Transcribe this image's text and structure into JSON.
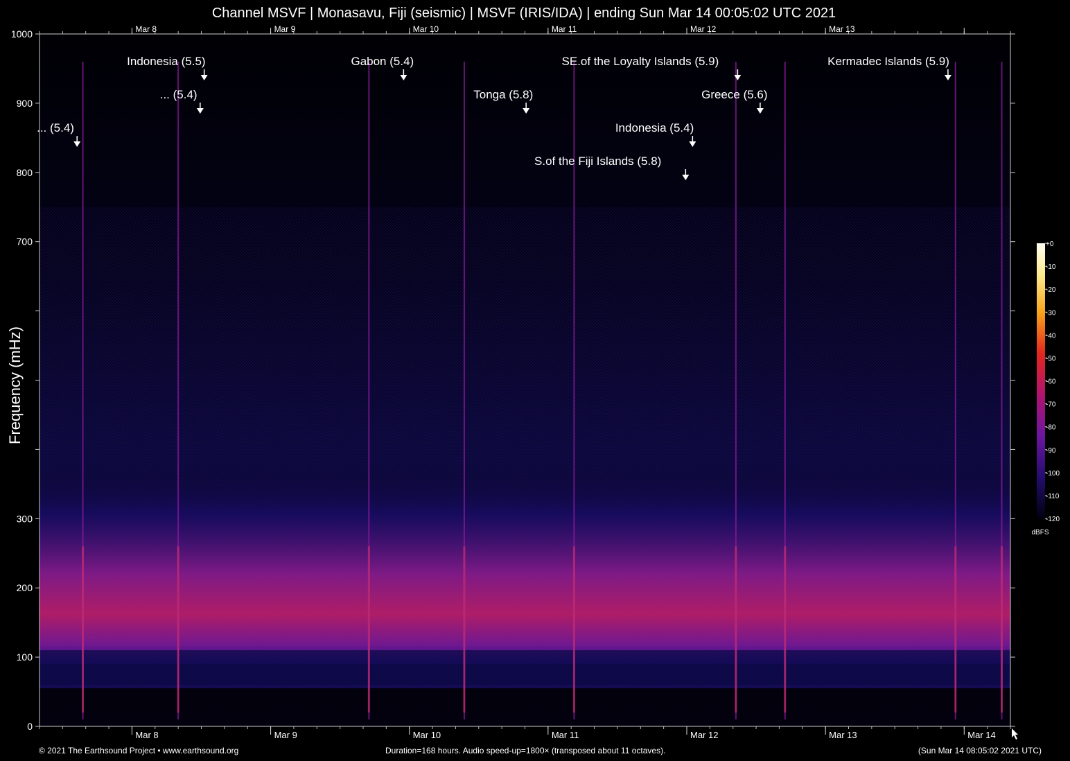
{
  "title": "Channel MSVF | Monasavu, Fiji (seismic) | MSVF (IRIS/IDA) | ending Sun Mar 14 00:05:02 UTC 2021",
  "footer": {
    "left": "© 2021 The Earthsound Project • www.earthsound.org",
    "center": "Duration=168 hours. Audio speed-up=1800× (transposed about 11 octaves).",
    "right": "(Sun Mar 14 08:05:02 2021 UTC)"
  },
  "chart_data": {
    "type": "heatmap",
    "title": "Channel MSVF | Monasavu, Fiji (seismic) | MSVF (IRIS/IDA) | ending Sun Mar 14 00:05:02 UTC 2021",
    "xlabel": "",
    "ylabel": "Frequency (mHz)",
    "x_unit": "hours before end (duration 168 h)",
    "xlim": [
      0,
      168
    ],
    "ylim": [
      0,
      1000
    ],
    "y_ticks": [
      0,
      100,
      200,
      300,
      400,
      500,
      600,
      700,
      800,
      900,
      1000
    ],
    "y_tick_labels": [
      "0",
      "100",
      "200",
      "300",
      "",
      "",
      "",
      "700",
      "800",
      "900",
      "1000"
    ],
    "x_ticks": [
      {
        "label": "Mar  8",
        "hour": 16
      },
      {
        "label": "Mar  9",
        "hour": 40
      },
      {
        "label": "Mar 10",
        "hour": 64
      },
      {
        "label": "Mar 11",
        "hour": 88
      },
      {
        "label": "Mar 12",
        "hour": 112
      },
      {
        "label": "Mar 13",
        "hour": 136
      },
      {
        "label": "Mar 14",
        "hour": 160
      }
    ],
    "colorbar": {
      "label": "dBFS",
      "ticks": [
        "+0",
        "-10",
        "-20",
        "-30",
        "-40",
        "-50",
        "-60",
        "-70",
        "-80",
        "-90",
        "-100",
        "-110",
        "-120"
      ],
      "range": [
        -120,
        0
      ]
    },
    "noise_band": {
      "center_mHz": 180,
      "low_mHz": 110,
      "high_mHz": 320
    },
    "annotations": [
      {
        "label": "... (5.4)",
        "hour": 6.5,
        "level": 2
      },
      {
        "label": "Indonesia (5.5)",
        "hour": 28.5,
        "level": 0
      },
      {
        "label": "... (5.4)",
        "hour": 27.8,
        "level": 1
      },
      {
        "label": "Gabon (5.4)",
        "hour": 63.0,
        "level": 0
      },
      {
        "label": "Tonga (5.8)",
        "hour": 84.2,
        "level": 1
      },
      {
        "label": "SE.of the Loyalty Islands (5.9)",
        "hour": 120.8,
        "level": 0
      },
      {
        "label": "Greece (5.6)",
        "hour": 124.7,
        "level": 1
      },
      {
        "label": "Indonesia (5.4)",
        "hour": 113.0,
        "level": 2
      },
      {
        "label": "S.of the Fiji Islands (5.8)",
        "hour": 111.8,
        "level": 3
      },
      {
        "label": "Kermadec Islands (5.9)",
        "hour": 157.2,
        "level": 0
      }
    ],
    "events_hours": [
      7.5,
      24.0,
      57.0,
      73.5,
      92.5,
      120.5,
      129.0,
      158.5,
      166.5
    ]
  }
}
